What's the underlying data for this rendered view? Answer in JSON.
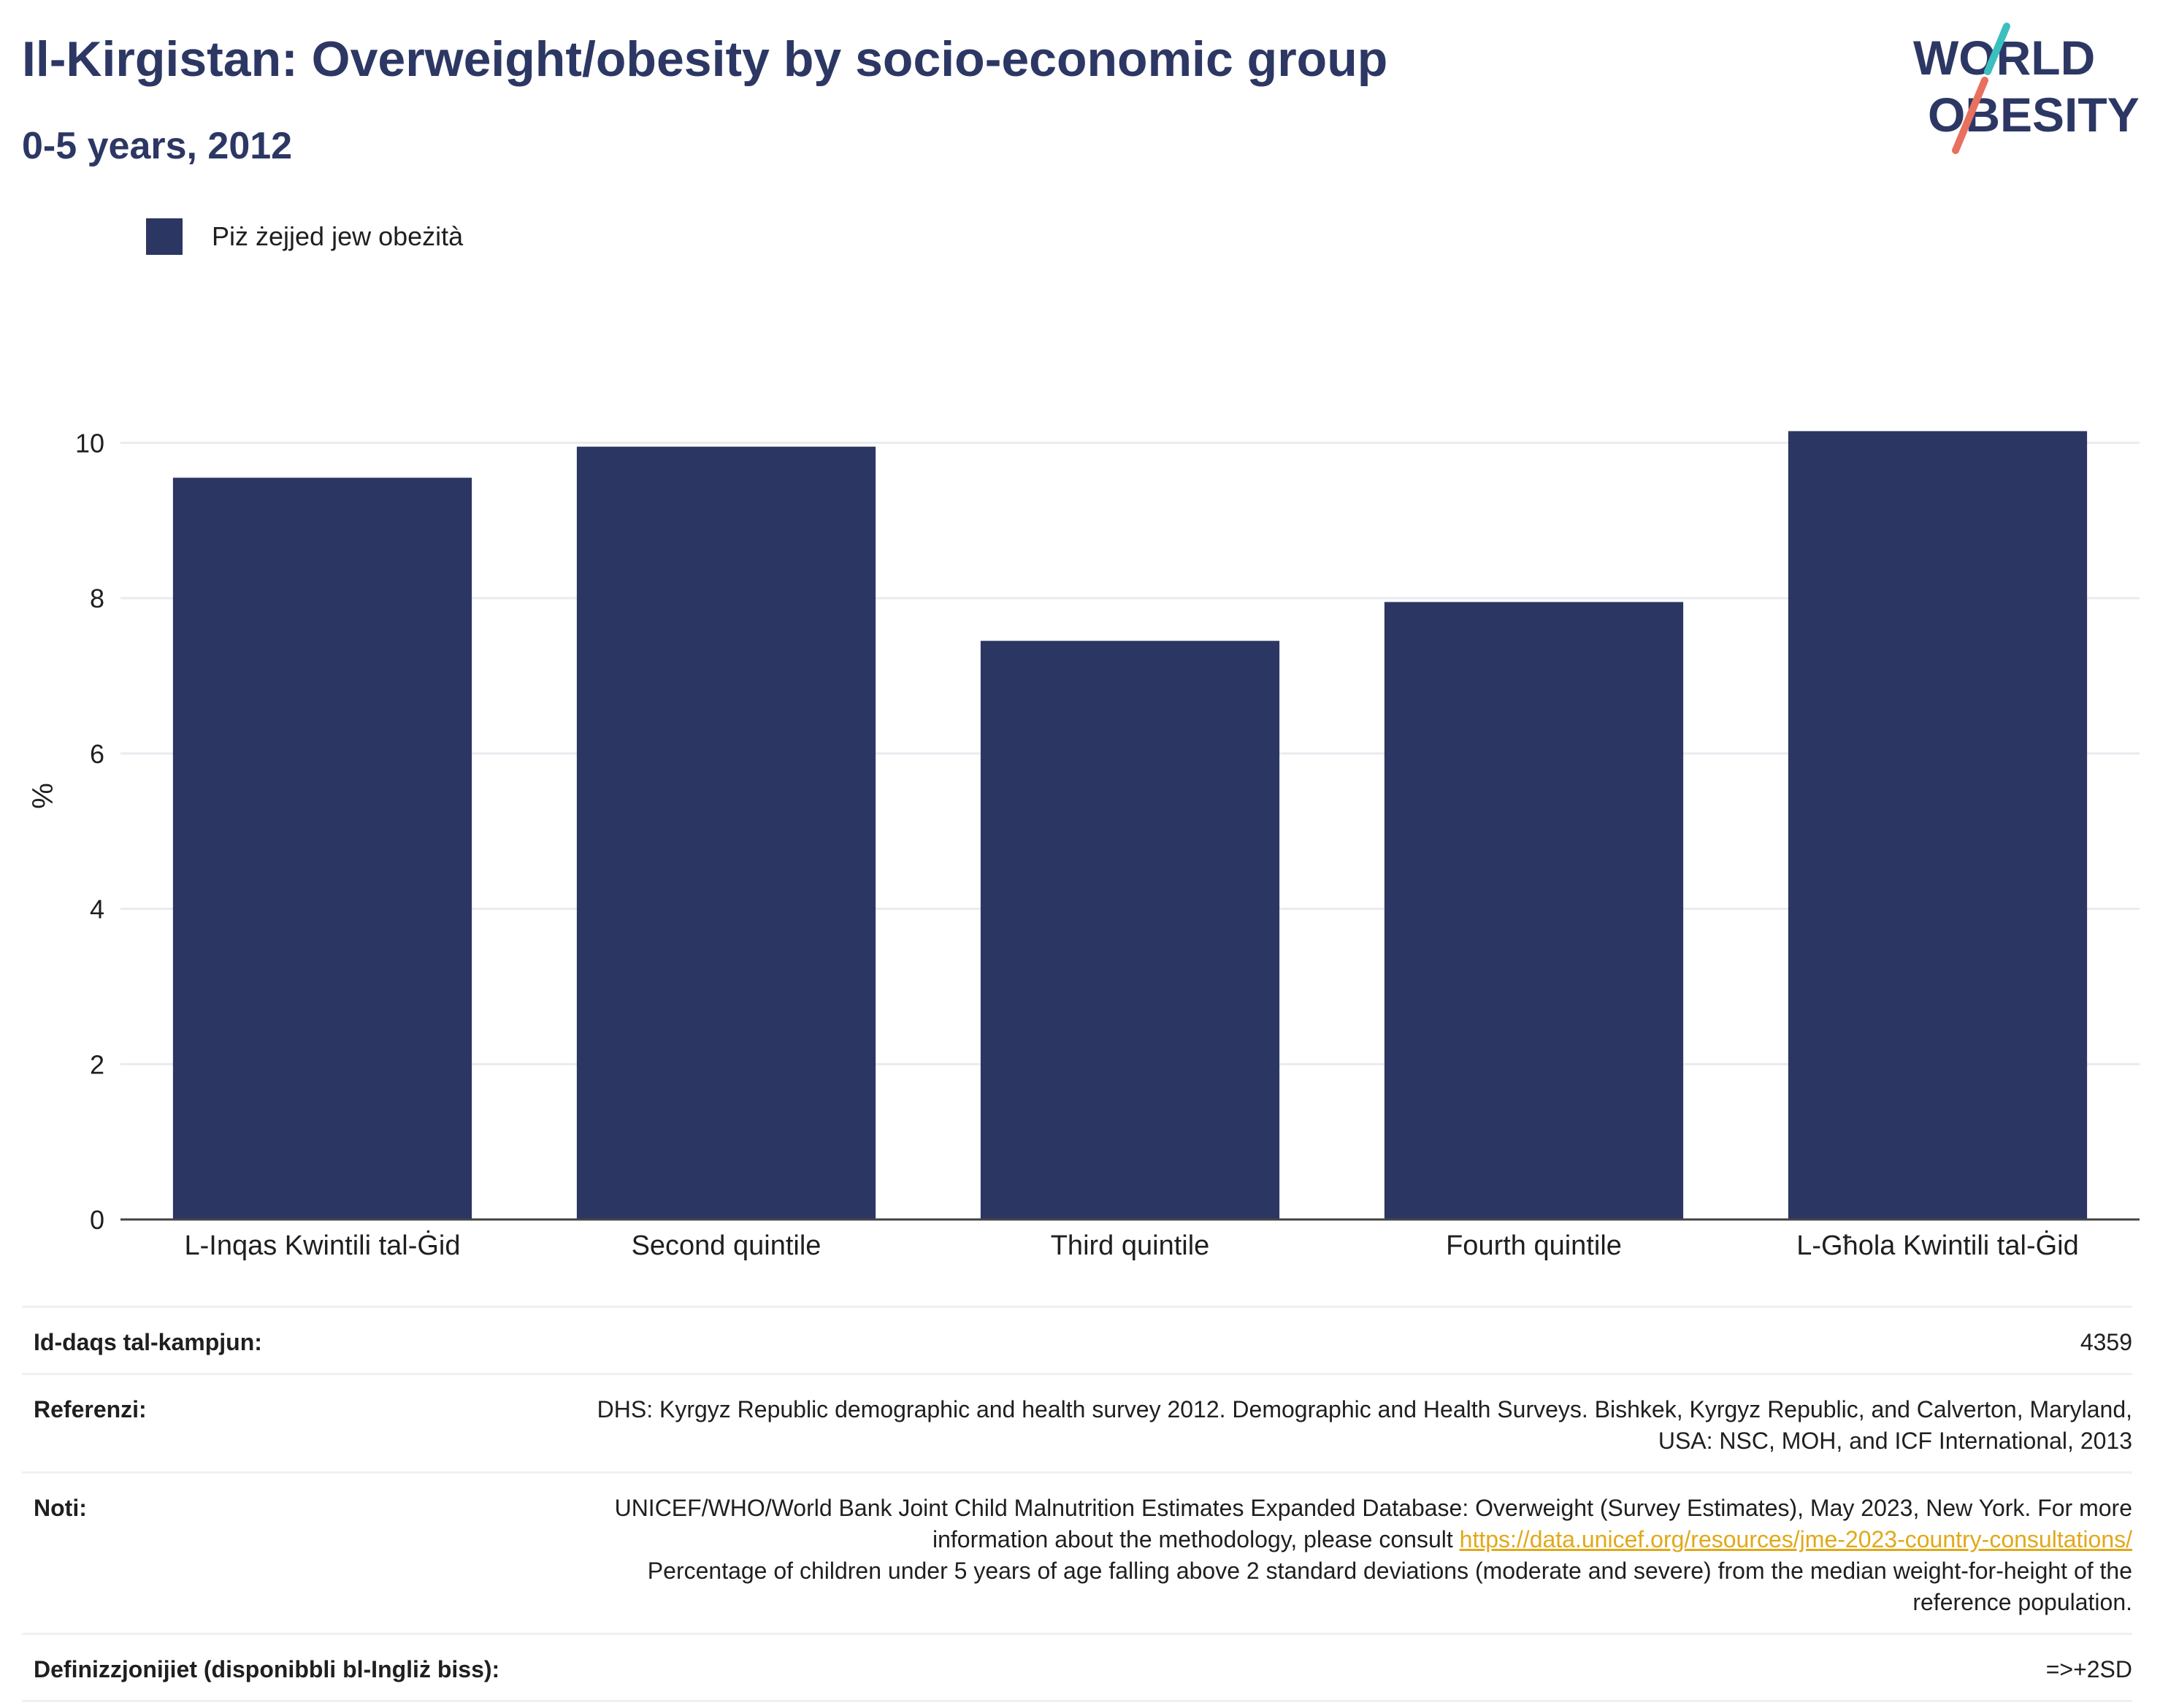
{
  "header": {
    "title": "Il-Kirgistan: Overweight/obesity by socio-economic group",
    "subtitle": "0-5 years, 2012"
  },
  "logo": {
    "line1": "WORLD",
    "line2": "OBESITY",
    "accent_teal": "#3cbfbf",
    "accent_red": "#e8705e"
  },
  "legend": {
    "label": "Piż żejjed jew obeżità",
    "color": "#2b3662"
  },
  "chart_data": {
    "type": "bar",
    "categories": [
      "L-Inqas Kwintili tal-Ġid",
      "Second quintile",
      "Third quintile",
      "Fourth quintile",
      "L-Għola Kwintili tal-Ġid"
    ],
    "series": [
      {
        "name": "Piż żejjed jew obeżità",
        "values": [
          9.55,
          9.95,
          7.45,
          7.95,
          10.15
        ]
      }
    ],
    "ylabel": "%",
    "xlabel": "",
    "ylim": [
      0,
      11
    ],
    "yticks": [
      0,
      2,
      4,
      6,
      8,
      10
    ],
    "grid": true,
    "bar_color": "#2b3662"
  },
  "meta": {
    "sample_size_label": "Id-daqs tal-kampjun:",
    "sample_size_value": "4359",
    "references_label": "Referenzi:",
    "references_value": "DHS: Kyrgyz Republic demographic and health survey 2012. Demographic and Health Surveys. Bishkek, Kyrgyz Republic, and Calverton, Maryland, USA: NSC, MOH, and ICF International, 2013",
    "notes_label": "Noti:",
    "notes_text_1": "UNICEF/WHO/World Bank Joint Child Malnutrition Estimates Expanded Database: Overweight (Survey Estimates), May 2023, New York. For more information about the methodology, please consult ",
    "notes_link": "https://data.unicef.org/resources/jme-2023-country-consultations/",
    "notes_text_2": "Percentage of children under 5 years of age falling above 2 standard deviations (moderate and severe) from the median weight-for-height of the reference population.",
    "definitions_label": "Definizzjonijiet (disponibbli bl-Ingliż biss):",
    "definitions_value": "=>+2SD"
  }
}
